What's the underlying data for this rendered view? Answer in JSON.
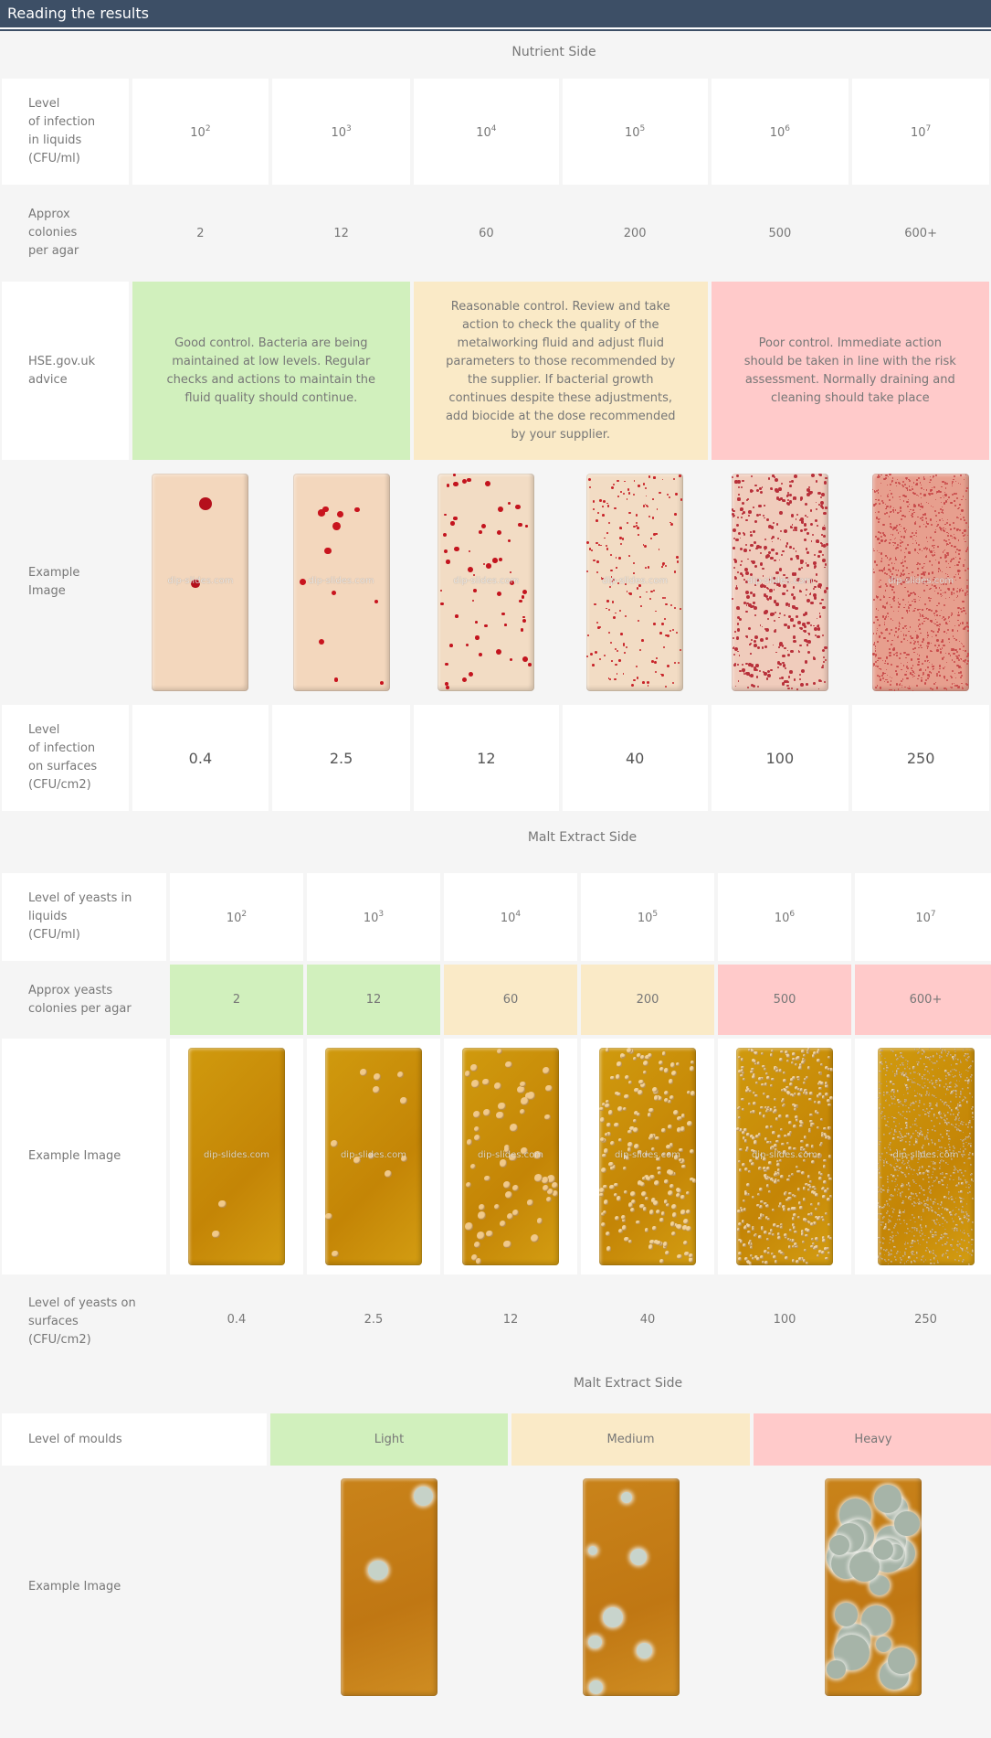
{
  "header": {
    "title": "Reading the results"
  },
  "nutrient": {
    "section_title": "Nutrient Side",
    "row_liquids": {
      "label": [
        "Level",
        "of infection",
        "in liquids",
        "(CFU/ml)"
      ],
      "values": [
        {
          "base": "10",
          "exp": "2"
        },
        {
          "base": "10",
          "exp": "3"
        },
        {
          "base": "10",
          "exp": "4"
        },
        {
          "base": "10",
          "exp": "5"
        },
        {
          "base": "10",
          "exp": "6"
        },
        {
          "base": "10",
          "exp": "7"
        }
      ]
    },
    "row_colonies": {
      "label": [
        "Approx",
        "colonies",
        "per agar"
      ],
      "values": [
        "2",
        "12",
        "60",
        "200",
        "500",
        "600+"
      ]
    },
    "row_advice": {
      "label": [
        "HSE.gov.uk",
        "advice"
      ],
      "good": "Good control. Bacteria are being maintained at low levels. Regular checks and actions to maintain the fluid quality should continue.",
      "reasonable": "Reasonable control. Review and take action to check the quality of the metalworking fluid and adjust fluid parameters to those recommended by the supplier. If bacterial growth continues despite these adjustments, add biocide at the dose recommended by your supplier.",
      "poor": "Poor control. Immediate action should be taken in line with the risk assessment. Normally draining and cleaning should take place"
    },
    "row_image": {
      "label": [
        "Example",
        "Image"
      ],
      "watermark": "dip-slides.com"
    },
    "row_surfaces": {
      "label": [
        "Level",
        "of infection",
        "on surfaces",
        "(CFU/cm2)"
      ],
      "values": [
        "0.4",
        "2.5",
        "12",
        "40",
        "100",
        "250"
      ]
    }
  },
  "yeasts": {
    "section_title": "Malt Extract Side",
    "row_liquids": {
      "label": [
        "Level of yeasts in",
        "liquids",
        "(CFU/ml)"
      ],
      "values": [
        {
          "base": "10",
          "exp": "2"
        },
        {
          "base": "10",
          "exp": "3"
        },
        {
          "base": "10",
          "exp": "4"
        },
        {
          "base": "10",
          "exp": "5"
        },
        {
          "base": "10",
          "exp": "6"
        },
        {
          "base": "10",
          "exp": "7"
        }
      ]
    },
    "row_colonies": {
      "label": [
        "Approx yeasts",
        "colonies per agar"
      ],
      "values": [
        "2",
        "12",
        "60",
        "200",
        "500",
        "600+"
      ]
    },
    "row_image": {
      "label": "Example Image",
      "watermark": "dip-slides.com"
    },
    "row_surfaces": {
      "label": [
        "Level of yeasts on",
        "surfaces",
        "(CFU/cm2)"
      ],
      "values": [
        "0.4",
        "2.5",
        "12",
        "40",
        "100",
        "250"
      ]
    }
  },
  "moulds": {
    "section_title": "Malt Extract Side",
    "row_level": {
      "label": "Level of moulds",
      "values": [
        "Light",
        "Medium",
        "Heavy"
      ]
    },
    "row_image": {
      "label": "Example Image"
    }
  },
  "colors": {
    "good": "#d1f0bd",
    "reasonable": "#faeac7",
    "poor": "#ffcaca",
    "header": "#3d4f66"
  }
}
